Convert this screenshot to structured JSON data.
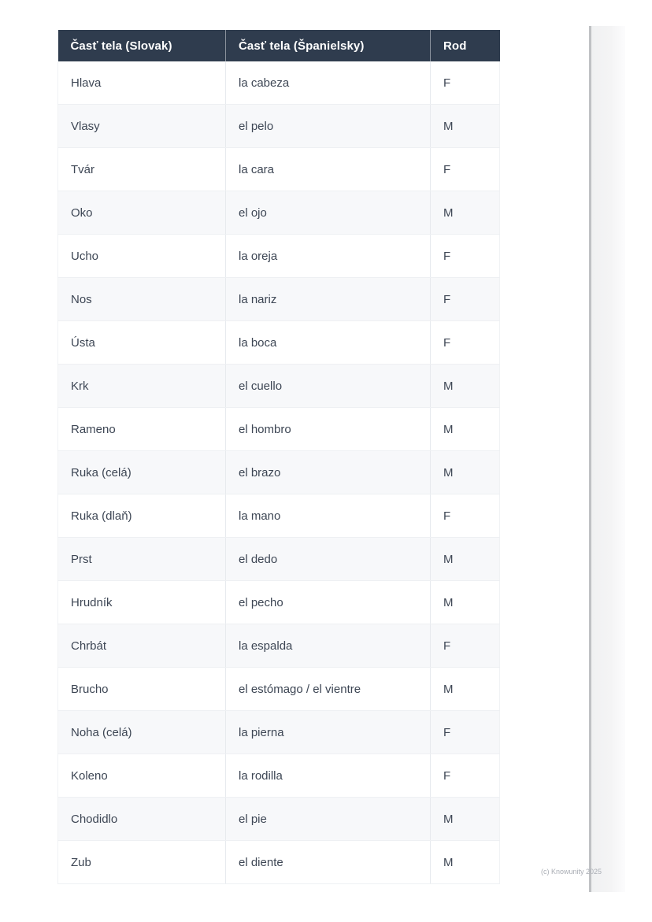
{
  "table": {
    "headers": [
      "Časť tela (Slovak)",
      "Časť tela (Španielsky)",
      "Rod"
    ],
    "rows": [
      {
        "sk": "Hlava",
        "es": "la cabeza",
        "rod": "F"
      },
      {
        "sk": "Vlasy",
        "es": "el pelo",
        "rod": "M"
      },
      {
        "sk": "Tvár",
        "es": "la cara",
        "rod": "F"
      },
      {
        "sk": "Oko",
        "es": "el ojo",
        "rod": "M"
      },
      {
        "sk": "Ucho",
        "es": "la oreja",
        "rod": "F"
      },
      {
        "sk": "Nos",
        "es": "la nariz",
        "rod": "F"
      },
      {
        "sk": "Ústa",
        "es": "la boca",
        "rod": "F"
      },
      {
        "sk": "Krk",
        "es": "el cuello",
        "rod": "M"
      },
      {
        "sk": "Rameno",
        "es": "el hombro",
        "rod": "M"
      },
      {
        "sk": "Ruka (celá)",
        "es": "el brazo",
        "rod": "M"
      },
      {
        "sk": "Ruka (dlaň)",
        "es": "la mano",
        "rod": "F"
      },
      {
        "sk": "Prst",
        "es": "el dedo",
        "rod": "M"
      },
      {
        "sk": "Hrudník",
        "es": "el pecho",
        "rod": "M"
      },
      {
        "sk": "Chrbát",
        "es": "la espalda",
        "rod": "F"
      },
      {
        "sk": "Brucho",
        "es": "el estómago / el vientre",
        "rod": "M"
      },
      {
        "sk": "Noha (celá)",
        "es": "la pierna",
        "rod": "F"
      },
      {
        "sk": "Koleno",
        "es": "la rodilla",
        "rod": "F"
      },
      {
        "sk": "Chodidlo",
        "es": "el pie",
        "rod": "M"
      },
      {
        "sk": "Zub",
        "es": "el diente",
        "rod": "M"
      }
    ]
  },
  "footer": {
    "watermark": "(c) Knowunity 2025"
  },
  "colors": {
    "header_bg": "#2f3c4e",
    "header_text": "#ffffff",
    "row_bg": "#ffffff",
    "row_alt_bg": "#f7f8fa",
    "body_text": "#3d4654",
    "watermark_text": "#a9adb4"
  }
}
